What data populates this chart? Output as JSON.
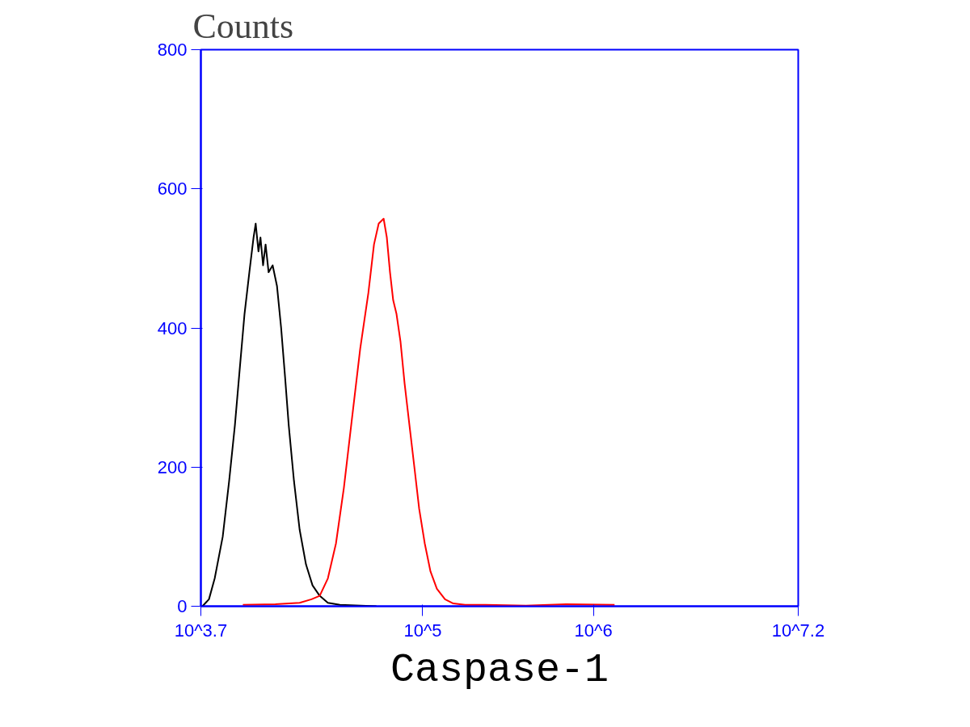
{
  "chart_data": {
    "type": "line",
    "title": "Counts",
    "xlabel": "Caspase-1",
    "log": "x",
    "grid": false,
    "marker": "none",
    "line_style": "solid",
    "xlim": [
      5011.87,
      15848932
    ],
    "ylim": [
      0,
      800
    ],
    "xticks": [
      {
        "value": 5011.87,
        "label": "10^3.7"
      },
      {
        "value": 100000,
        "label": "10^5"
      },
      {
        "value": 1000000,
        "label": "10^6"
      },
      {
        "value": 15848932,
        "label": "10^7.2"
      }
    ],
    "yticks": [
      0,
      200,
      400,
      600,
      800
    ],
    "series": [
      {
        "color": "#000000",
        "x": [
          5120,
          5590,
          6040,
          6730,
          7340,
          7930,
          8460,
          9030,
          9640,
          10200,
          10500,
          10900,
          11200,
          11600,
          12000,
          12500,
          13200,
          14000,
          14800,
          15600,
          16400,
          17600,
          19000,
          20700,
          22600,
          24900,
          27800,
          32700,
          53500
        ],
        "values": [
          0,
          10,
          40,
          100,
          180,
          260,
          340,
          420,
          480,
          530,
          550,
          510,
          530,
          490,
          520,
          480,
          490,
          460,
          400,
          330,
          260,
          180,
          110,
          60,
          30,
          15,
          5,
          2,
          0
        ]
      },
      {
        "color": "#ff0000",
        "x": [
          8830,
          13700,
          19000,
          22300,
          24900,
          27800,
          31000,
          34500,
          38500,
          43000,
          48000,
          51800,
          55200,
          59000,
          61600,
          64300,
          67100,
          70200,
          74100,
          78300,
          83600,
          89300,
          95300,
          102800,
          111000,
          121000,
          135000,
          151000,
          177000,
          233000,
          402000,
          693000,
          1330000
        ],
        "values": [
          2,
          3,
          5,
          10,
          15,
          40,
          90,
          170,
          270,
          370,
          450,
          520,
          550,
          557,
          530,
          480,
          440,
          420,
          380,
          320,
          260,
          200,
          140,
          90,
          50,
          25,
          10,
          4,
          2,
          2,
          1,
          3,
          2
        ]
      }
    ]
  }
}
